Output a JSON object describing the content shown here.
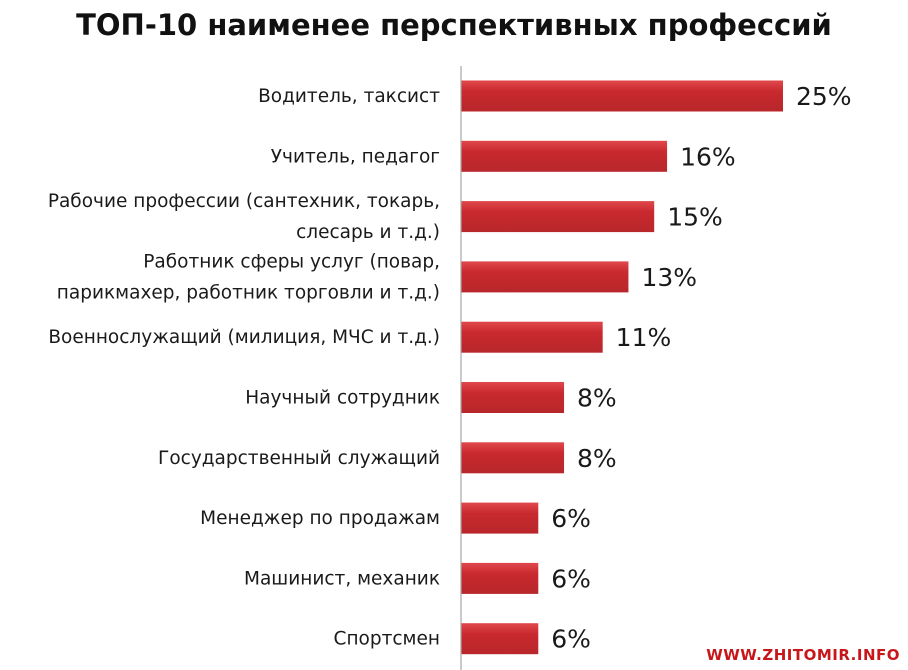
{
  "chart_data": {
    "type": "bar",
    "orientation": "horizontal",
    "title": "ТОП-10 наименее перспективных профессий",
    "categories": [
      [
        "Водитель, таксист"
      ],
      [
        "Учитель, педагог"
      ],
      [
        "Рабочие профессии (сантехник, токарь,",
        "слесарь и т.д.)"
      ],
      [
        "Работник сферы услуг (повар,",
        "парикмахер, работник торговли и т.д.)"
      ],
      [
        "Военнослужащий (милиция, МЧС и т.д.)"
      ],
      [
        "Научный сотрудник"
      ],
      [
        "Государственный служащий"
      ],
      [
        "Менеджер по продажам"
      ],
      [
        "Машинист, механик"
      ],
      [
        "Спортсмен"
      ]
    ],
    "values": [
      25,
      16,
      15,
      13,
      11,
      8,
      8,
      6,
      6,
      6
    ],
    "value_labels": [
      "25%",
      "16%",
      "15%",
      "13%",
      "11%",
      "8%",
      "8%",
      "6%",
      "6%",
      "6%"
    ],
    "xlim": [
      0,
      30
    ],
    "xlabel": "",
    "ylabel": "",
    "grid": false,
    "bar_color": "#b8272b",
    "bar_highlight": "#e0484c"
  },
  "watermark": "WWW.ZHITOMIR.INFO"
}
